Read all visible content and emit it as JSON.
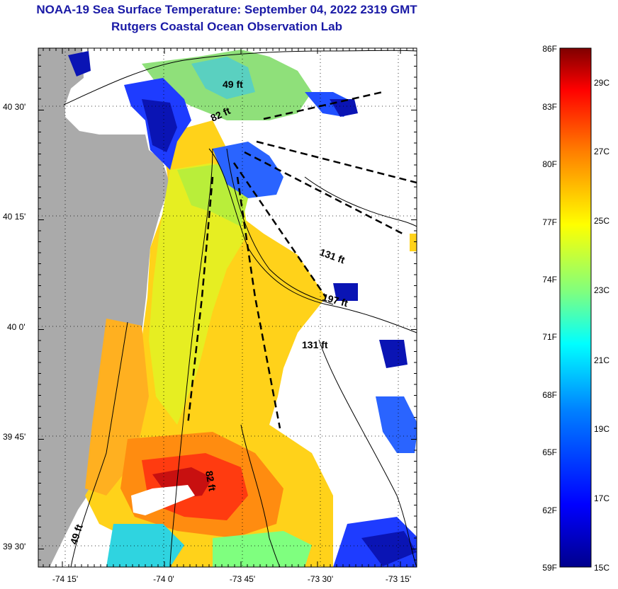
{
  "header": {
    "title": "NOAA-19 Sea Surface Temperature:  September 04, 2022 2319 GMT",
    "subtitle": "Rutgers Coastal Ocean Observation Lab"
  },
  "map": {
    "lon_labels": [
      "-74 15'",
      "-74 0'",
      "-73 45'",
      "-73 30'",
      "-73 15'"
    ],
    "lat_labels": [
      "40 30'",
      "40 15'",
      "40 0'",
      "39 45'",
      "39 30'"
    ],
    "depth_labels": [
      "49 ft",
      "82 ft",
      "131 ft",
      "197 ft",
      "131 ft",
      "82 ft",
      "49 ft"
    ]
  },
  "colorbar": {
    "f_labels": [
      "86F",
      "83F",
      "80F",
      "77F",
      "74F",
      "71F",
      "68F",
      "65F",
      "62F",
      "59F"
    ],
    "c_labels": [
      "29C",
      "27C",
      "25C",
      "23C",
      "21C",
      "19C",
      "17C",
      "15C"
    ],
    "colors": [
      "#00008c",
      "#0000ff",
      "#007fff",
      "#00ffff",
      "#7fff7f",
      "#ffff00",
      "#ff7f00",
      "#ff0000",
      "#7f0000"
    ]
  }
}
